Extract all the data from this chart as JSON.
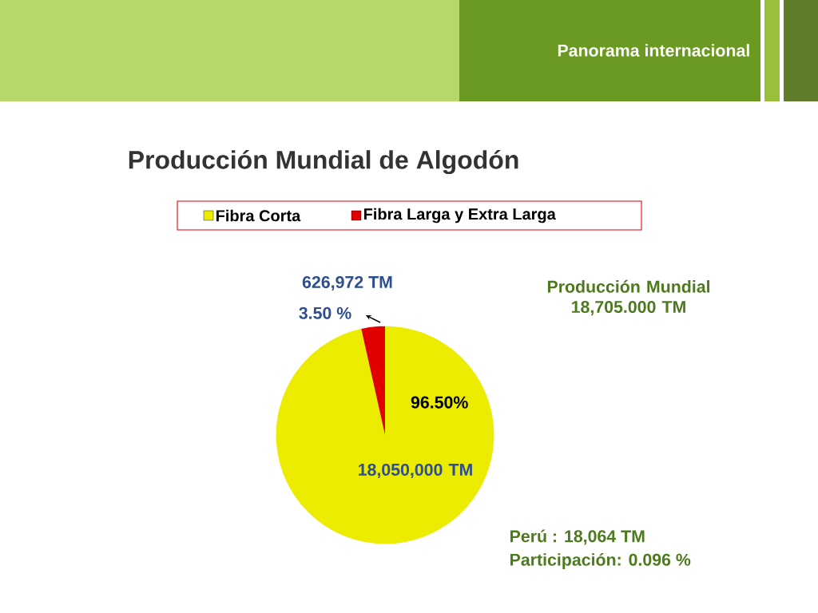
{
  "chart_data": {
    "type": "pie",
    "title": "Producción Mundial de Algodón",
    "subtitle": "Panorama internacional",
    "categories": [
      "Fibra Corta",
      "Fibra Larga y Extra Larga"
    ],
    "values": [
      96.5,
      3.5
    ],
    "colors": [
      "#ecec00",
      "#e00000"
    ],
    "value_labels": [
      "96.50%",
      "3.50 %"
    ],
    "legend": "top",
    "annotations": [
      "626,972 TM",
      "18,050,000 TM",
      "Producción Mundial 18,705.000 TM",
      "Perú : 18,064 TM",
      "Participación: 0.096 %"
    ]
  }
}
